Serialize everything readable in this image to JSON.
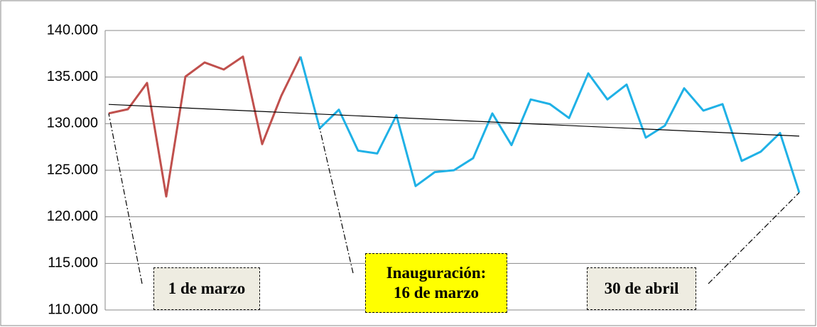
{
  "chart_data": {
    "type": "line",
    "categories": [
      null,
      null,
      null,
      null,
      null,
      null,
      null,
      null,
      null,
      null,
      null,
      null,
      null,
      null,
      null,
      null,
      null,
      null,
      null,
      null,
      null,
      null,
      null,
      null,
      null,
      null,
      null,
      null,
      null,
      null,
      null,
      null,
      null,
      null,
      null,
      null,
      null
    ],
    "series": [
      {
        "color": "#c0504d",
        "values": [
          131100,
          131550,
          134370,
          122180,
          135050,
          136570,
          135810,
          137200,
          127800,
          133000,
          137200,
          null,
          null,
          null,
          null,
          null,
          null,
          null,
          null,
          null,
          null,
          null,
          null,
          null,
          null,
          null,
          null,
          null,
          null,
          null,
          null,
          null,
          null,
          null,
          null,
          null,
          null
        ]
      },
      {
        "color": "#1fb1e6",
        "values": [
          null,
          null,
          null,
          null,
          null,
          null,
          null,
          null,
          null,
          null,
          137200,
          129500,
          131500,
          127100,
          126800,
          130900,
          123300,
          124800,
          125000,
          126300,
          131100,
          127700,
          132600,
          132100,
          130600,
          135400,
          132600,
          134200,
          128500,
          129800,
          133800,
          131400,
          132100,
          126000,
          127000,
          129000,
          122600
        ]
      }
    ],
    "trendline": true,
    "ylim": [
      110000,
      140000
    ],
    "yticks": [
      {
        "value": 110000,
        "label": "110.000"
      },
      {
        "value": 115000,
        "label": "115.000"
      },
      {
        "value": 120000,
        "label": "120.000"
      },
      {
        "value": 125000,
        "label": "125.000"
      },
      {
        "value": 130000,
        "label": "130.000"
      },
      {
        "value": 135000,
        "label": "135.000"
      },
      {
        "value": 140000,
        "label": "140.000"
      }
    ],
    "grid": true,
    "annotations": [
      {
        "text": "1 de marzo",
        "color": "#eeece1"
      },
      {
        "text": "Inauguración:\n16 de marzo",
        "color": "#ffff00"
      },
      {
        "text": "30 de abril",
        "color": "#eeece1"
      }
    ]
  }
}
